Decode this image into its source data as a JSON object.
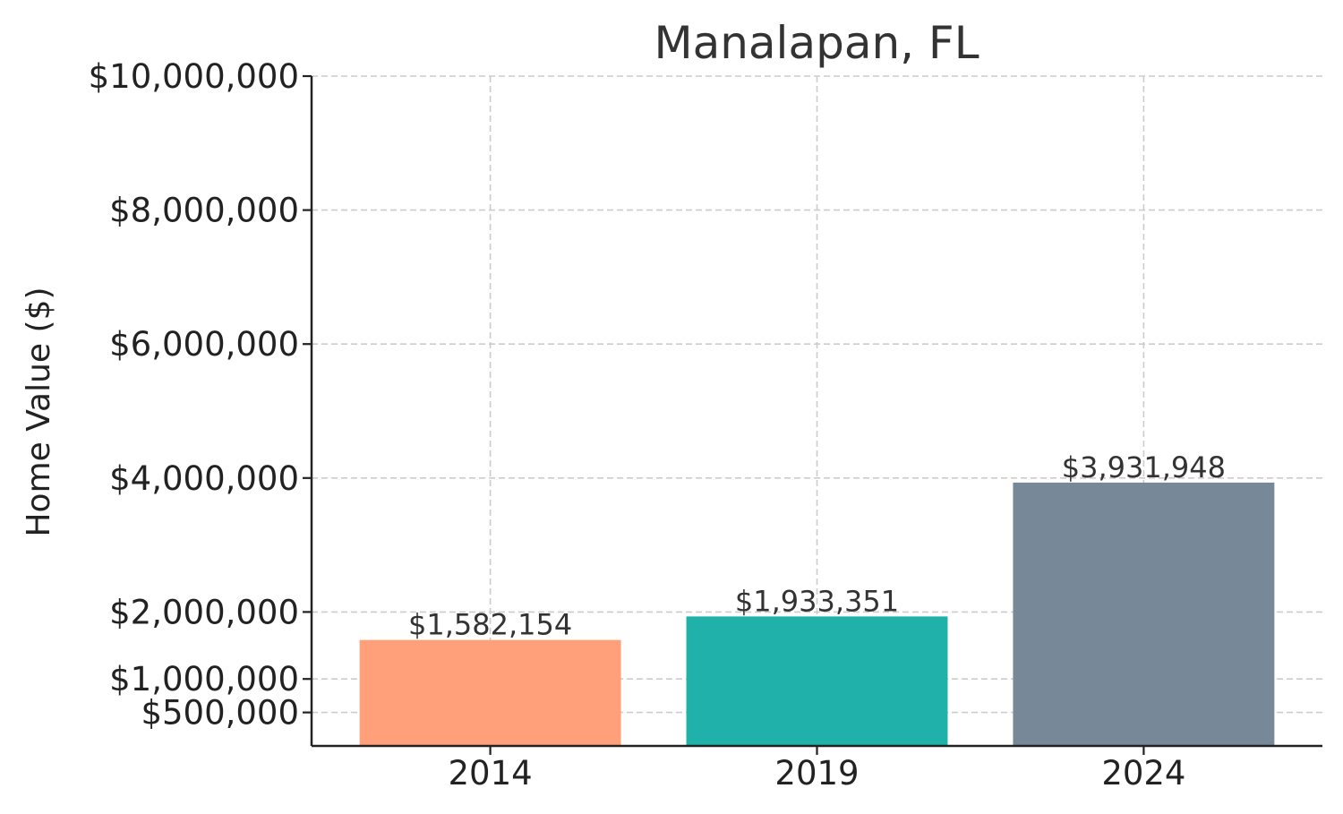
{
  "chart_data": {
    "type": "bar",
    "title": "Manalapan, FL",
    "xlabel": "",
    "ylabel": "Home Value ($)",
    "categories": [
      "2014",
      "2019",
      "2024"
    ],
    "values": [
      1582154,
      1933351,
      3931948
    ],
    "value_labels": [
      "$1,582,154",
      "$1,933,351",
      "$3,931,948"
    ],
    "bar_colors": [
      "#FFA07A",
      "#20B2AA",
      "#778899"
    ],
    "ylim": [
      0,
      10000000
    ],
    "yticks": [
      500000,
      1000000,
      2000000,
      4000000,
      6000000,
      8000000,
      10000000
    ],
    "ytick_labels": [
      "$500,000",
      "$1,000,000",
      "$2,000,000",
      "$4,000,000",
      "$6,000,000",
      "$8,000,000",
      "$10,000,000"
    ],
    "grid": true
  }
}
